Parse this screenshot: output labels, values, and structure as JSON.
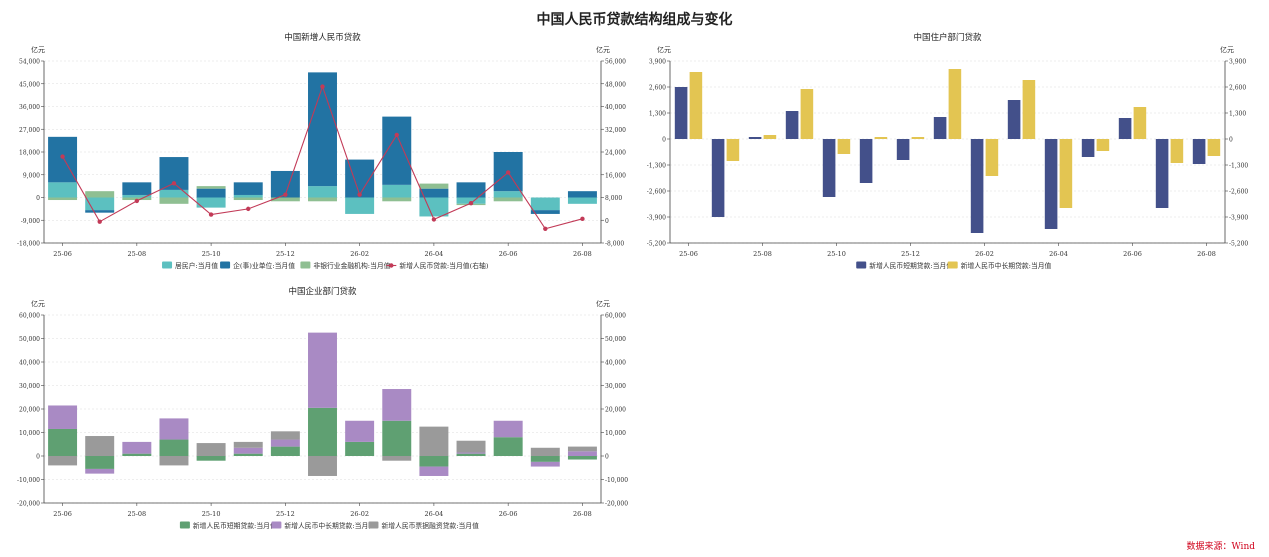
{
  "main_title": "中国人民币贷款结构组成与变化",
  "source": "数据来源：Wind",
  "colors": {
    "household": "#5cc0c0",
    "enterprise": "#2273a3",
    "nonbank": "#8fbf92",
    "total_line": "#c23a57",
    "hh_short": "#43508a",
    "hh_long": "#e3c552",
    "corp_short": "#5fa072",
    "corp_long": "#a98ac4",
    "corp_bill": "#9a9a9a"
  },
  "chart_data": [
    {
      "type": "bar",
      "title": "中国新增人民币贷款",
      "unit_left": "亿元",
      "unit_right": "亿元",
      "x_tick_labels": [
        "25-06",
        "25-08",
        "25-10",
        "25-12",
        "26-02",
        "26-04",
        "26-06",
        "26-08"
      ],
      "categories": [
        "25-06",
        "25-07",
        "25-08",
        "25-09",
        "25-10",
        "25-11",
        "25-12",
        "26-01",
        "26-02",
        "26-03",
        "26-04",
        "26-05",
        "26-06",
        "26-07",
        "26-08"
      ],
      "ylim": [
        -18000,
        54000
      ],
      "yticks": [
        -18000,
        -9000,
        0,
        9000,
        18000,
        27000,
        36000,
        45000,
        54000
      ],
      "y_tick_labels": [
        "-18,000",
        "-9,000",
        "0",
        "9,000",
        "18,000",
        "27,000",
        "36,000",
        "45,000",
        "54,000"
      ],
      "y2lim": [
        -8000,
        56000
      ],
      "y2ticks": [
        -8000,
        0,
        8000,
        16000,
        24000,
        32000,
        40000,
        48000,
        56000
      ],
      "y2_tick_labels": [
        "-8,000",
        "0",
        "8,000",
        "16,000",
        "24,000",
        "32,000",
        "40,000",
        "48,000",
        "56,000"
      ],
      "stacked": true,
      "series": [
        {
          "name": "居民户:当月值",
          "color_key": "household",
          "values": [
            6000,
            -5000,
            1000,
            3000,
            -4000,
            1000,
            0,
            4500,
            -6500,
            5000,
            -7500,
            -2500,
            2500,
            -5000,
            -2500
          ]
        },
        {
          "name": "企(事)业单位:当月值",
          "color_key": "enterprise",
          "values": [
            18000,
            -1000,
            5000,
            13000,
            3500,
            5000,
            10500,
            45000,
            15000,
            27000,
            3500,
            6000,
            15500,
            -1500,
            2500
          ]
        },
        {
          "name": "非银行业金融机构:当月值",
          "color_key": "nonbank",
          "values": [
            -1000,
            2500,
            -1000,
            -2500,
            1000,
            -1000,
            -1500,
            -1500,
            0,
            -1500,
            2000,
            -500,
            -1500,
            0,
            0
          ]
        }
      ],
      "line_series": {
        "name": "新增人民币贷款:当月值(右轴)",
        "color_key": "total_line",
        "axis": "right",
        "values": [
          22400,
          -500,
          6800,
          13000,
          2000,
          4000,
          9000,
          47000,
          9000,
          30000,
          300,
          6000,
          16800,
          -3000,
          500
        ]
      },
      "legend_position": "bottom",
      "grid": "horizontal dashed"
    },
    {
      "type": "bar",
      "title": "中国住户部门贷款",
      "unit_left": "亿元",
      "unit_right": "亿元",
      "x_tick_labels": [
        "25-06",
        "25-08",
        "25-10",
        "25-12",
        "26-02",
        "26-04",
        "26-06",
        "26-08"
      ],
      "categories": [
        "25-06",
        "25-07",
        "25-08",
        "25-09",
        "25-10",
        "25-11",
        "25-12",
        "26-01",
        "26-02",
        "26-03",
        "26-04",
        "26-05",
        "26-06",
        "26-07",
        "26-08"
      ],
      "ylim": [
        -5200,
        3900
      ],
      "yticks": [
        -5200,
        -3900,
        -2600,
        -1300,
        0,
        1300,
        2600,
        3900
      ],
      "y_tick_labels": [
        "-5,200",
        "-3,900",
        "-2,600",
        "-1,300",
        "0",
        "1,300",
        "2,600",
        "3,900"
      ],
      "y2_tick_labels": [
        "-5,200",
        "-3,900",
        "-2,600",
        "-1,300",
        "0",
        "1,300",
        "2,600",
        "3,900"
      ],
      "stacked": false,
      "series": [
        {
          "name": "新增人民币短期贷款:当月值",
          "color_key": "hh_short",
          "values": [
            2600,
            -3900,
            100,
            1400,
            -2900,
            -2200,
            -1050,
            1100,
            -4700,
            1950,
            -4500,
            -900,
            1050,
            -3450,
            -1250
          ]
        },
        {
          "name": "新增人民币中长期贷款:当月值",
          "color_key": "hh_long",
          "values": [
            3350,
            -1100,
            200,
            2500,
            -750,
            100,
            100,
            3500,
            -1850,
            2950,
            -3450,
            -600,
            1600,
            -1200,
            -850
          ]
        }
      ],
      "legend_position": "bottom",
      "grid": "horizontal dashed"
    },
    {
      "type": "bar",
      "title": "中国企业部门贷款",
      "unit_left": "亿元",
      "unit_right": "亿元",
      "x_tick_labels": [
        "25-06",
        "25-08",
        "25-10",
        "25-12",
        "26-02",
        "26-04",
        "26-06",
        "26-08"
      ],
      "categories": [
        "25-06",
        "25-07",
        "25-08",
        "25-09",
        "25-10",
        "25-11",
        "25-12",
        "26-01",
        "26-02",
        "26-03",
        "26-04",
        "26-05",
        "26-06",
        "26-07",
        "26-08"
      ],
      "ylim": [
        -20000,
        60000
      ],
      "yticks": [
        -20000,
        -10000,
        0,
        10000,
        20000,
        30000,
        40000,
        50000,
        60000
      ],
      "y_tick_labels": [
        "-20,000",
        "-10,000",
        "0",
        "10,000",
        "20,000",
        "30,000",
        "40,000",
        "50,000",
        "60,000"
      ],
      "y2_tick_labels": [
        "-20,000",
        "-10,000",
        "0",
        "10,000",
        "20,000",
        "30,000",
        "40,000",
        "50,000",
        "60,000"
      ],
      "stacked": true,
      "series": [
        {
          "name": "新增人民币短期贷款:当月值",
          "color_key": "corp_short",
          "values": [
            11500,
            -5500,
            1000,
            7000,
            -2000,
            1000,
            4000,
            20500,
            6000,
            15000,
            -4500,
            1000,
            8000,
            -2500,
            -1500
          ]
        },
        {
          "name": "新增人民币中长期贷款:当月值",
          "color_key": "corp_long",
          "values": [
            10000,
            -2000,
            5000,
            9000,
            0,
            2500,
            3000,
            32000,
            9000,
            13500,
            -4000,
            500,
            7000,
            -2000,
            2000
          ]
        },
        {
          "name": "新增人民币票据融资贷款:当月值",
          "color_key": "corp_bill",
          "values": [
            -4000,
            8500,
            0,
            -4000,
            5500,
            2500,
            3500,
            -8500,
            0,
            -2000,
            12500,
            5000,
            0,
            3500,
            2000
          ]
        }
      ],
      "legend_position": "bottom",
      "grid": "horizontal dashed"
    }
  ]
}
